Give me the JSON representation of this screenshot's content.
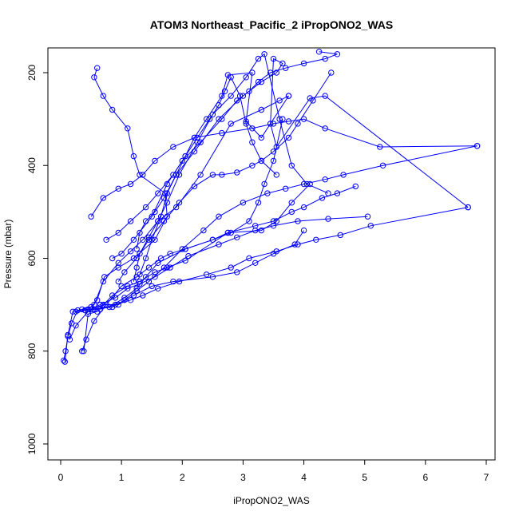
{
  "chart_data": {
    "type": "line",
    "title": "ATOM3 Northeast_Pacific_2 iPropONO2_WAS",
    "xlabel": "iPropONO2_WAS",
    "ylabel": "Pressure (mbar)",
    "xlim": [
      0,
      7
    ],
    "ylim": [
      1000,
      150
    ],
    "y_reversed": true,
    "grid": false,
    "marker": "open-circle",
    "color": "#0000ff",
    "x_ticks": [
      "0",
      "1",
      "2",
      "3",
      "4",
      "5",
      "6",
      "7"
    ],
    "y_ticks": [
      "200",
      "400",
      "600",
      "800",
      "1000"
    ],
    "series": [
      {
        "x": [
          0.05,
          0.08,
          0.12,
          0.18,
          0.28,
          0.45,
          0.55,
          0.7,
          0.95,
          1.15,
          1.35,
          1.6,
          1.9,
          2.3,
          2.8,
          3.3,
          3.6,
          3.75
        ],
        "y": [
          820,
          800,
          768,
          740,
          712,
          710,
          700,
          650,
          610,
          585,
          560,
          520,
          490,
          420,
          310,
          280,
          260,
          250
        ]
      },
      {
        "x": [
          0.07,
          0.12,
          0.2,
          0.35,
          0.5,
          0.6,
          0.72,
          0.95,
          1.2,
          1.55,
          1.75,
          1.72,
          1.3,
          1.2,
          1.1,
          0.85,
          0.7,
          0.55,
          0.6
        ],
        "y": [
          823,
          765,
          715,
          710,
          705,
          690,
          640,
          620,
          600,
          560,
          510,
          460,
          420,
          380,
          320,
          280,
          250,
          210,
          190
        ]
      },
      {
        "x": [
          0.35,
          0.42,
          0.55,
          0.75,
          1.0,
          1.25,
          1.45,
          1.65,
          1.8,
          2.05,
          2.5,
          2.8,
          3.1,
          3.25,
          3.35,
          3.5,
          3.65
        ],
        "y": [
          800,
          775,
          735,
          700,
          660,
          640,
          620,
          600,
          590,
          580,
          560,
          545,
          520,
          480,
          440,
          390,
          300
        ]
      },
      {
        "x": [
          0.38,
          0.45,
          0.6,
          0.85,
          1.1,
          1.3,
          1.55,
          1.75,
          2.05,
          2.75,
          3.3,
          3.55,
          3.8,
          4.1
        ],
        "y": [
          800,
          720,
          715,
          680,
          660,
          650,
          630,
          620,
          605,
          545,
          540,
          520,
          480,
          440
        ]
      },
      {
        "x": [
          0.15,
          0.25,
          0.45,
          0.7,
          0.95,
          1.2,
          1.5,
          1.85,
          2.5,
          2.9,
          3.2,
          3.5,
          3.85,
          4.0
        ],
        "y": [
          775,
          745,
          715,
          700,
          700,
          680,
          660,
          650,
          640,
          630,
          610,
          590,
          570,
          540
        ]
      },
      {
        "x": [
          0.25,
          0.4,
          0.55,
          0.8,
          1.05,
          1.25,
          1.4,
          1.6,
          2.05,
          2.5,
          2.75,
          3.2,
          3.5,
          3.8,
          4.0,
          4.3,
          4.55,
          4.85
        ],
        "y": [
          715,
          712,
          710,
          705,
          685,
          665,
          640,
          610,
          580,
          560,
          545,
          530,
          520,
          500,
          490,
          470,
          460,
          445
        ]
      },
      {
        "x": [
          0.5,
          0.65,
          0.9,
          1.1,
          1.3,
          1.55,
          1.8,
          2.1,
          2.6,
          2.9,
          3.2,
          3.5,
          3.9,
          4.4,
          5.05
        ],
        "y": [
          710,
          700,
          685,
          665,
          655,
          640,
          620,
          595,
          570,
          555,
          540,
          530,
          520,
          515,
          510
        ]
      },
      {
        "x": [
          0.65,
          0.9,
          1.15,
          1.35,
          1.6,
          1.95,
          2.4,
          2.8,
          3.1,
          3.55,
          3.9,
          4.2,
          4.6,
          5.1,
          6.7
        ],
        "y": [
          710,
          700,
          690,
          680,
          665,
          650,
          635,
          620,
          600,
          585,
          570,
          560,
          550,
          530,
          490
        ]
      },
      {
        "x": [
          0.55,
          0.85,
          1.05,
          1.25,
          1.45,
          1.7,
          2.0,
          2.35,
          2.6,
          3.0,
          3.4,
          3.7,
          4.0,
          4.35,
          4.65,
          5.3,
          6.85
        ],
        "y": [
          710,
          705,
          690,
          670,
          650,
          620,
          580,
          540,
          510,
          480,
          460,
          450,
          440,
          430,
          420,
          400,
          358
        ]
      },
      {
        "x": [
          0.5,
          0.7,
          0.95,
          1.15,
          1.35,
          1.55,
          1.85,
          2.2,
          2.65,
          3.15,
          3.5,
          3.75,
          4.0,
          4.35,
          5.25,
          6.85
        ],
        "y": [
          510,
          470,
          450,
          440,
          420,
          390,
          360,
          340,
          330,
          320,
          310,
          305,
          300,
          320,
          360,
          358
        ]
      },
      {
        "x": [
          0.85,
          1.0,
          1.2,
          1.5,
          1.75,
          2.0,
          2.3,
          2.65,
          2.9,
          3.1,
          3.25,
          3.45,
          3.7,
          4.0,
          4.35,
          4.55,
          4.25
        ],
        "y": [
          600,
          590,
          560,
          510,
          440,
          390,
          350,
          300,
          260,
          240,
          220,
          200,
          190,
          180,
          170,
          160,
          155
        ]
      },
      {
        "x": [
          1.25,
          1.3,
          1.4,
          1.55,
          1.7,
          1.9,
          2.2,
          2.6,
          3.0,
          3.3,
          3.55,
          3.65,
          3.5,
          3.45,
          3.55,
          4.1,
          4.35,
          6.7
        ],
        "y": [
          580,
          545,
          520,
          500,
          470,
          420,
          370,
          300,
          250,
          220,
          200,
          180,
          170,
          310,
          360,
          255,
          250,
          490
        ]
      },
      {
        "x": [
          1.2,
          1.25,
          1.3,
          1.45,
          1.6,
          1.75,
          1.95,
          2.25,
          2.5,
          2.8,
          3.05,
          3.25,
          3.35,
          3.6,
          3.8,
          4.05,
          4.4
        ],
        "y": [
          650,
          620,
          590,
          555,
          520,
          480,
          420,
          350,
          290,
          250,
          210,
          170,
          160,
          300,
          400,
          440,
          460
        ]
      },
      {
        "x": [
          0.75,
          0.95,
          1.15,
          1.4,
          1.6,
          1.85,
          2.05,
          2.25,
          2.45,
          2.6,
          2.7,
          2.8,
          2.95,
          3.05,
          3.15,
          3.3,
          3.55
        ],
        "y": [
          560,
          545,
          520,
          490,
          460,
          420,
          380,
          340,
          300,
          270,
          240,
          210,
          250,
          310,
          350,
          390,
          420
        ]
      },
      {
        "x": [
          1.3,
          1.4,
          1.5,
          1.65,
          1.75,
          1.9,
          2.05,
          2.2,
          2.4,
          2.65,
          2.75,
          3.15,
          3.05,
          3.3,
          3.75
        ],
        "y": [
          635,
          600,
          560,
          510,
          460,
          420,
          380,
          340,
          300,
          250,
          205,
          200,
          305,
          340,
          250
        ]
      },
      {
        "x": [
          0.95,
          1.05,
          1.25,
          1.45,
          1.7,
          1.95,
          2.2,
          2.5,
          2.65,
          2.9,
          3.15,
          3.3,
          3.5,
          3.75,
          3.9,
          4.15,
          4.45
        ],
        "y": [
          650,
          630,
          600,
          560,
          520,
          480,
          445,
          420,
          420,
          415,
          400,
          390,
          370,
          340,
          310,
          260,
          200
        ]
      }
    ]
  }
}
